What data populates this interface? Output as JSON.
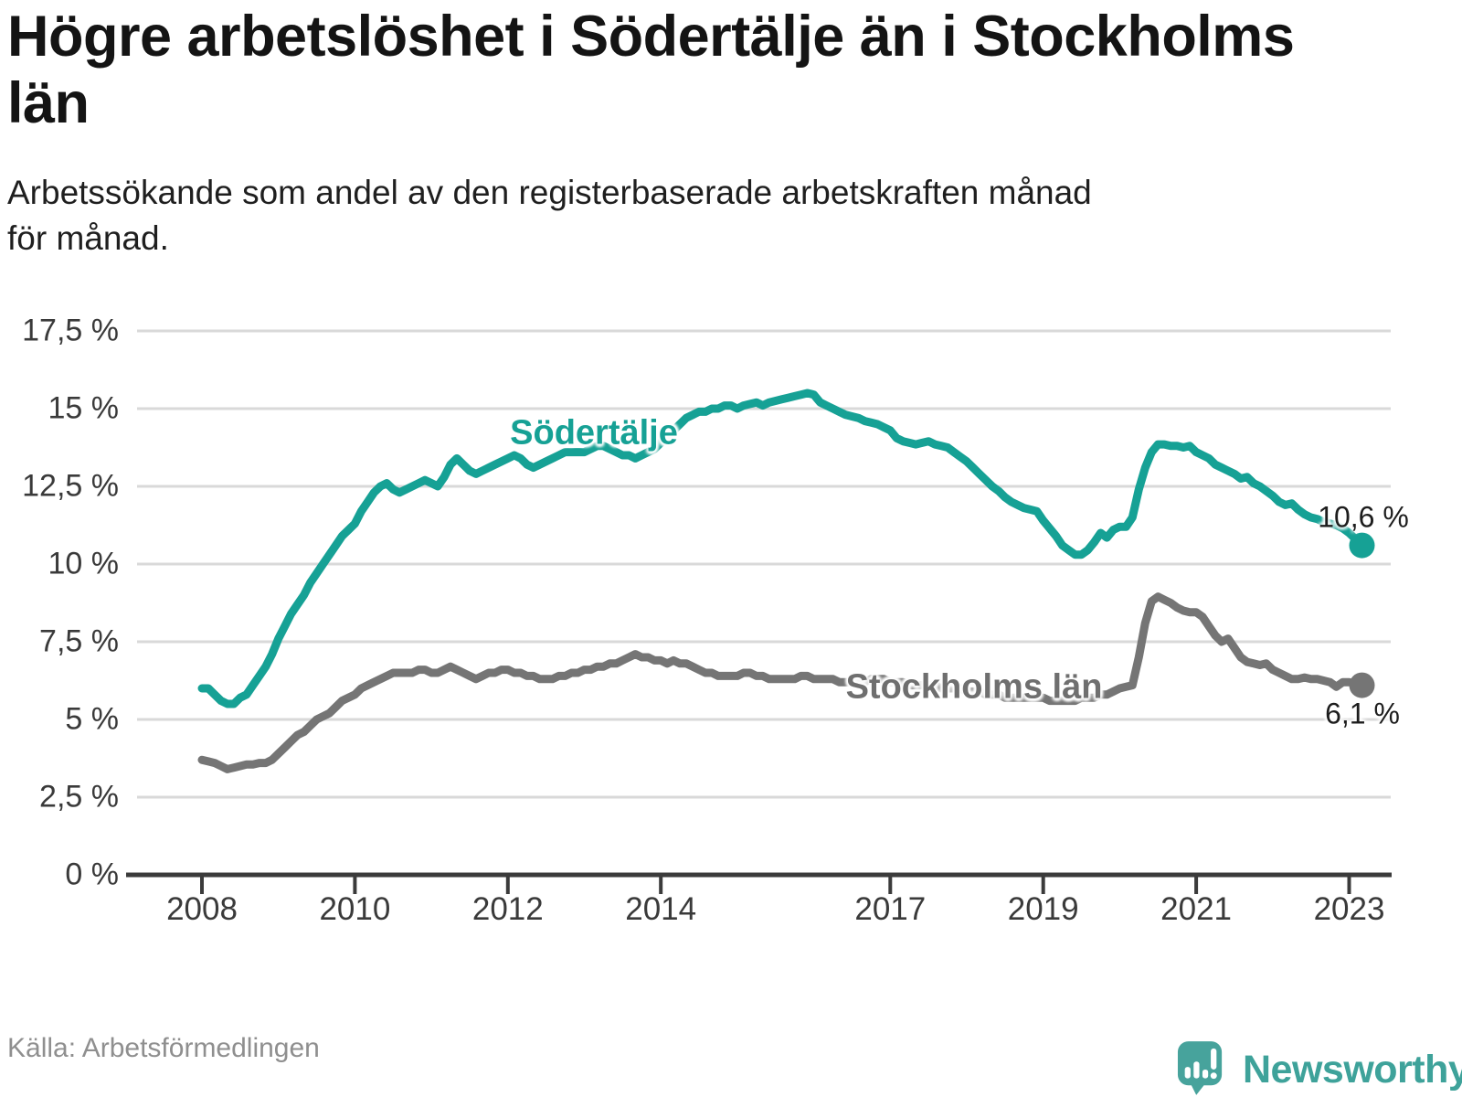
{
  "title": "Högre arbetslöshet i Södertälje än i Stockholms län",
  "title_lines": [
    "Högre arbetslöshet i Södertälje än i Stockholms",
    "län"
  ],
  "subtitle": "Arbetssökande som andel av den registerbaserade arbetskraften månad för månad.",
  "subtitle_lines": [
    "Arbetssökande som andel av den registerbaserade arbetskraften månad",
    "för månad."
  ],
  "source": "Källa: Arbetsförmedlingen",
  "brand": {
    "name": "Newsworthy",
    "icon": "speech-bubble-bar-chart",
    "color": "#3ea29a",
    "icon_color": "#47a39c"
  },
  "colors": {
    "sodertalje": "#16a195",
    "stockholm": "#757575",
    "grid": "#d9d9d9",
    "axis": "#3b3b3b",
    "tick_text": "#3a3a3a",
    "title_text": "#141414",
    "source_text": "#8f8f8f",
    "series_label_gray": "#6f6f6f"
  },
  "chart_data": {
    "type": "line",
    "title": "Högre arbetslöshet i Södertälje än i Stockholms län",
    "xlabel": "",
    "ylabel": "",
    "grid": "horizontal",
    "legend_position": "inline-labels",
    "x_unit": "year-month",
    "start_year": 2008,
    "end_point": "2023-03",
    "xlim": [
      2007.0,
      2023.55
    ],
    "ylim": [
      0,
      17.5
    ],
    "x_ticks": [
      2008,
      2010,
      2012,
      2014,
      2017,
      2019,
      2021,
      2023
    ],
    "y_ticks": [
      {
        "value": 0,
        "label": "0 %"
      },
      {
        "value": 2.5,
        "label": "2,5 %"
      },
      {
        "value": 5,
        "label": "5 %"
      },
      {
        "value": 7.5,
        "label": "7,5 %"
      },
      {
        "value": 10,
        "label": "10 %"
      },
      {
        "value": 12.5,
        "label": "12,5 %"
      },
      {
        "value": 15,
        "label": "15 %"
      },
      {
        "value": 17.5,
        "label": "17,5 %"
      }
    ],
    "series": [
      {
        "name": "Södertälje",
        "color": "#16a195",
        "end_label": "10,6 %",
        "end_value": 10.6,
        "values": [
          6.0,
          6.0,
          5.8,
          5.6,
          5.5,
          5.5,
          5.7,
          5.8,
          6.1,
          6.4,
          6.7,
          7.1,
          7.6,
          8.0,
          8.4,
          8.7,
          9.0,
          9.4,
          9.7,
          10.0,
          10.3,
          10.6,
          10.9,
          11.1,
          11.3,
          11.7,
          12.0,
          12.3,
          12.5,
          12.6,
          12.4,
          12.3,
          12.4,
          12.5,
          12.6,
          12.7,
          12.6,
          12.5,
          12.8,
          13.2,
          13.4,
          13.2,
          13.0,
          12.9,
          13.0,
          13.1,
          13.2,
          13.3,
          13.4,
          13.5,
          13.4,
          13.2,
          13.1,
          13.2,
          13.3,
          13.4,
          13.5,
          13.6,
          13.6,
          13.6,
          13.6,
          13.7,
          13.8,
          13.8,
          13.7,
          13.6,
          13.5,
          13.5,
          13.4,
          13.5,
          13.6,
          13.7,
          13.9,
          14.1,
          14.3,
          14.5,
          14.7,
          14.8,
          14.9,
          14.9,
          15.0,
          15.0,
          15.1,
          15.1,
          15.0,
          15.1,
          15.15,
          15.2,
          15.1,
          15.2,
          15.25,
          15.3,
          15.35,
          15.4,
          15.45,
          15.5,
          15.45,
          15.2,
          15.1,
          15.0,
          14.9,
          14.8,
          14.75,
          14.7,
          14.6,
          14.55,
          14.5,
          14.4,
          14.3,
          14.05,
          13.95,
          13.9,
          13.85,
          13.9,
          13.95,
          13.85,
          13.8,
          13.75,
          13.6,
          13.45,
          13.3,
          13.1,
          12.9,
          12.7,
          12.5,
          12.35,
          12.15,
          12.0,
          11.9,
          11.8,
          11.75,
          11.7,
          11.4,
          11.15,
          10.9,
          10.6,
          10.45,
          10.3,
          10.3,
          10.45,
          10.7,
          11.0,
          10.85,
          11.1,
          11.2,
          11.2,
          11.5,
          12.4,
          13.1,
          13.6,
          13.85,
          13.85,
          13.8,
          13.8,
          13.75,
          13.8,
          13.6,
          13.5,
          13.4,
          13.2,
          13.1,
          13.0,
          12.9,
          12.75,
          12.8,
          12.6,
          12.5,
          12.35,
          12.2,
          12.0,
          11.9,
          11.95,
          11.75,
          11.6,
          11.5,
          11.45,
          11.35,
          11.3,
          11.25,
          11.15,
          11.0,
          10.8,
          10.6
        ]
      },
      {
        "name": "Stockholms län",
        "color": "#757575",
        "end_label": "6,1 %",
        "end_value": 6.1,
        "values": [
          3.7,
          3.65,
          3.6,
          3.5,
          3.4,
          3.45,
          3.5,
          3.55,
          3.55,
          3.6,
          3.6,
          3.7,
          3.9,
          4.1,
          4.3,
          4.5,
          4.6,
          4.8,
          5.0,
          5.1,
          5.2,
          5.4,
          5.6,
          5.7,
          5.8,
          6.0,
          6.1,
          6.2,
          6.3,
          6.4,
          6.5,
          6.5,
          6.5,
          6.5,
          6.6,
          6.6,
          6.5,
          6.5,
          6.6,
          6.7,
          6.6,
          6.5,
          6.4,
          6.3,
          6.4,
          6.5,
          6.5,
          6.6,
          6.6,
          6.5,
          6.5,
          6.4,
          6.4,
          6.3,
          6.3,
          6.3,
          6.4,
          6.4,
          6.5,
          6.5,
          6.6,
          6.6,
          6.7,
          6.7,
          6.8,
          6.8,
          6.9,
          7.0,
          7.1,
          7.0,
          7.0,
          6.9,
          6.9,
          6.8,
          6.9,
          6.8,
          6.8,
          6.7,
          6.6,
          6.5,
          6.5,
          6.4,
          6.4,
          6.4,
          6.4,
          6.5,
          6.5,
          6.4,
          6.4,
          6.3,
          6.3,
          6.3,
          6.3,
          6.3,
          6.4,
          6.4,
          6.3,
          6.3,
          6.3,
          6.3,
          6.2,
          6.2,
          6.2,
          6.2,
          6.2,
          6.3,
          6.3,
          6.3,
          6.2,
          6.2,
          6.2,
          6.1,
          6.1,
          6.1,
          6.1,
          6.1,
          6.0,
          6.0,
          6.0,
          6.0,
          5.9,
          5.9,
          5.9,
          5.8,
          5.8,
          5.8,
          5.7,
          5.7,
          5.7,
          5.7,
          5.7,
          5.7,
          5.7,
          5.6,
          5.6,
          5.6,
          5.6,
          5.6,
          5.7,
          5.7,
          5.7,
          5.8,
          5.8,
          5.9,
          6.0,
          6.05,
          6.1,
          7.0,
          8.1,
          8.8,
          8.95,
          8.85,
          8.75,
          8.6,
          8.5,
          8.45,
          8.45,
          8.3,
          8.0,
          7.7,
          7.5,
          7.6,
          7.3,
          7.0,
          6.85,
          6.8,
          6.75,
          6.8,
          6.6,
          6.5,
          6.4,
          6.3,
          6.3,
          6.35,
          6.3,
          6.3,
          6.25,
          6.2,
          6.05,
          6.2,
          6.2,
          6.15,
          6.1
        ]
      }
    ]
  }
}
